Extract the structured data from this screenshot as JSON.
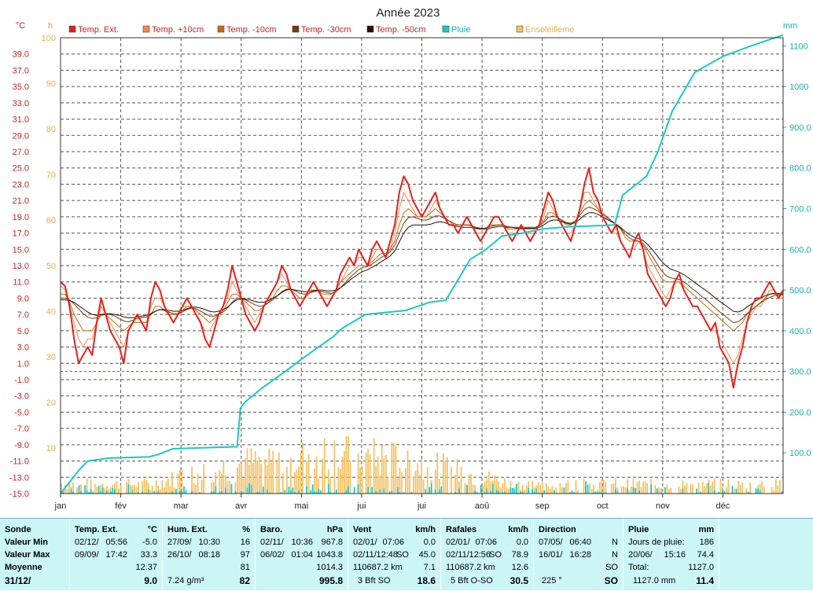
{
  "chart_data": {
    "type": "line",
    "title": "Année 2023",
    "y_left_unit": "°C",
    "y_hours_unit": "h",
    "y_right_unit": "mm",
    "ylim_temp": [
      -15,
      41
    ],
    "temp_ticks": [
      39.0,
      37.0,
      35.0,
      33.0,
      31.0,
      29.0,
      27.0,
      25.0,
      23.0,
      21.0,
      19.0,
      17.0,
      15.0,
      13.0,
      11.0,
      9.0,
      7.0,
      5.0,
      3.0,
      1.0,
      -1.0,
      -3.0,
      -5.0,
      -7.0,
      -9.0,
      -11.0,
      -13.0,
      -15.0
    ],
    "ylim_hours": [
      0,
      100
    ],
    "hours_ticks": [
      100,
      90,
      80,
      70,
      60,
      50,
      40,
      30,
      20,
      10
    ],
    "ylim_rain": [
      0,
      1120
    ],
    "rain_ticks": [
      1100,
      1000,
      900,
      800,
      700,
      600,
      500,
      400,
      300,
      200,
      100
    ],
    "months": [
      "jan",
      "fév",
      "mar",
      "avr",
      "mai",
      "jui",
      "jui",
      "aoû",
      "sep",
      "oct",
      "nov",
      "déc"
    ],
    "zero_line": 0,
    "grid": true,
    "legend": [
      {
        "name": "Temp. Ext.",
        "color": "#e8201a"
      },
      {
        "name": "Temp. +10cm",
        "color": "#f08a50"
      },
      {
        "name": "Temp. -10cm",
        "color": "#c86a10"
      },
      {
        "name": "Temp. -30cm",
        "color": "#7a3a10"
      },
      {
        "name": "Temp. -50cm",
        "color": "#2a0e06"
      },
      {
        "name": "Pluie",
        "color": "#18c8cc"
      },
      {
        "name": "Ensoleilleme",
        "color": "#f5c060"
      }
    ],
    "temp_ext": [
      11,
      10.5,
      8,
      4,
      1,
      2,
      3,
      2,
      6,
      9,
      7,
      5,
      4,
      3,
      1,
      5,
      6,
      7,
      6,
      5,
      9,
      11,
      10,
      8,
      7,
      6,
      7,
      8,
      9,
      8,
      7,
      6,
      4,
      3,
      5,
      7,
      8,
      10,
      13,
      11,
      9,
      7,
      6,
      5,
      6,
      8,
      9,
      10,
      11,
      13,
      12,
      10,
      9,
      8,
      9,
      10,
      11,
      10,
      9,
      8,
      9,
      10,
      12,
      13,
      14,
      13,
      15,
      14,
      13,
      15,
      16,
      15,
      14,
      16,
      18,
      22,
      24,
      23,
      21,
      20,
      19,
      20,
      21,
      22,
      20,
      19,
      18,
      18,
      17,
      18,
      19,
      18,
      17,
      16,
      17,
      18,
      19,
      19,
      18,
      17,
      16,
      17,
      18,
      17,
      16,
      17,
      18,
      20,
      22,
      21,
      19,
      18,
      17,
      16,
      18,
      20,
      23,
      25,
      22,
      21,
      19,
      18,
      17,
      18,
      16,
      15,
      14,
      16,
      17,
      15,
      12,
      11,
      10,
      9,
      8,
      9,
      11,
      12,
      10,
      9,
      8,
      8,
      7,
      6,
      5,
      6,
      3,
      2,
      1,
      -2,
      1,
      3,
      6,
      8,
      9,
      9,
      10,
      11,
      10,
      9,
      10
    ],
    "temp_10cm": [
      10.5,
      10,
      8,
      6,
      4,
      3,
      4,
      4,
      6,
      8,
      7,
      6,
      5,
      4,
      3,
      5,
      6,
      6,
      6,
      6,
      8,
      9,
      9,
      8,
      7,
      7,
      7,
      8,
      8,
      8,
      7,
      6,
      5,
      5,
      6,
      7,
      8,
      9,
      11,
      10,
      9,
      8,
      7,
      6,
      7,
      8,
      9,
      10,
      11,
      12,
      11,
      10,
      9,
      8,
      9,
      10,
      10,
      10,
      9,
      9,
      9,
      10,
      11,
      12,
      13,
      13,
      14,
      14,
      13,
      14,
      15,
      15,
      14,
      15,
      17,
      20,
      22,
      21,
      20,
      19,
      19,
      19,
      20,
      21,
      20,
      19,
      18,
      18,
      17,
      18,
      18,
      18,
      17,
      17,
      17,
      18,
      18,
      18,
      18,
      17,
      17,
      17,
      18,
      17,
      17,
      17,
      18,
      19,
      21,
      20,
      19,
      18,
      17,
      17,
      18,
      20,
      22,
      22,
      21,
      20,
      19,
      18,
      17,
      17,
      16,
      15,
      15,
      15,
      16,
      15,
      13,
      12,
      11,
      10,
      9,
      10,
      11,
      11,
      10,
      9,
      8,
      8,
      7,
      6,
      5,
      5,
      4,
      3,
      2,
      1,
      2,
      4,
      6,
      7,
      8,
      8,
      9,
      10,
      10,
      9,
      9
    ],
    "temp_m10": [
      9.5,
      9.5,
      8.5,
      7,
      6,
      5,
      5,
      5,
      6,
      7,
      7,
      6.5,
      6,
      5.5,
      5,
      5.5,
      6,
      6,
      6,
      6,
      7,
      8,
      8,
      7.5,
      7,
      7,
      7,
      7.5,
      8,
      8,
      7.5,
      7,
      6.5,
      6,
      6.5,
      7,
      7.5,
      8.5,
      9.5,
      9.5,
      9,
      8.5,
      8,
      7.5,
      7.5,
      8,
      8.5,
      9,
      10,
      10.5,
      10.5,
      10,
      9.5,
      9,
      9,
      9.5,
      10,
      10,
      9.5,
      9.5,
      9.5,
      10,
      11,
      11.5,
      12,
      12.5,
      13,
      13,
      13,
      13.5,
      14,
      14.5,
      14.5,
      15,
      16,
      18,
      19.5,
      20,
      19.5,
      19,
      19,
      19,
      19.5,
      20,
      19.5,
      19,
      18.5,
      18,
      18,
      18,
      18,
      18,
      17.5,
      17.5,
      17.5,
      18,
      18,
      18,
      18,
      17.5,
      17.5,
      17.5,
      17.5,
      17.5,
      17.5,
      17.5,
      18,
      18.5,
      19.5,
      19.5,
      19,
      18.5,
      18,
      18,
      18.5,
      19.5,
      20.5,
      21,
      20.5,
      20,
      19.5,
      19,
      18.5,
      18,
      17.5,
      16.5,
      16,
      16,
      16,
      15.5,
      14.5,
      13.5,
      12.5,
      11.5,
      11,
      11,
      11,
      11,
      10.5,
      10,
      9.5,
      9,
      8.5,
      8,
      7.5,
      7,
      6.5,
      6,
      5.5,
      5,
      5.5,
      6,
      7,
      7.5,
      8,
      8.5,
      9,
      9.5,
      9.5,
      9.5,
      9.5
    ],
    "temp_m30": [
      9,
      9,
      8.8,
      8.3,
      7.7,
      7.1,
      6.7,
      6.5,
      6.6,
      6.9,
      7,
      7,
      6.8,
      6.5,
      6.2,
      6.1,
      6.3,
      6.5,
      6.6,
      6.7,
      7,
      7.4,
      7.6,
      7.5,
      7.3,
      7.1,
      7.1,
      7.3,
      7.6,
      7.8,
      7.7,
      7.4,
      7.1,
      6.8,
      6.8,
      7,
      7.3,
      7.8,
      8.5,
      9,
      9,
      8.8,
      8.5,
      8.2,
      8,
      8.1,
      8.4,
      8.8,
      9.3,
      9.8,
      10.1,
      10.1,
      9.9,
      9.6,
      9.5,
      9.6,
      9.8,
      9.9,
      9.8,
      9.7,
      9.6,
      9.8,
      10.3,
      10.9,
      11.5,
      12,
      12.5,
      12.8,
      12.9,
      13.2,
      13.6,
      14,
      14.3,
      14.7,
      15.5,
      16.9,
      18.2,
      18.9,
      19,
      18.8,
      18.6,
      18.6,
      18.8,
      19.1,
      19.1,
      18.8,
      18.5,
      18.2,
      18,
      18,
      18,
      17.9,
      17.7,
      17.6,
      17.6,
      17.8,
      17.9,
      18,
      18,
      17.8,
      17.7,
      17.7,
      17.7,
      17.7,
      17.7,
      17.7,
      17.9,
      18.3,
      18.9,
      19.1,
      18.9,
      18.6,
      18.3,
      18.2,
      18.5,
      19.2,
      19.9,
      20.2,
      20,
      19.7,
      19.3,
      18.9,
      18.5,
      18.1,
      17.6,
      16.9,
      16.4,
      16.1,
      16,
      15.7,
      15,
      14.2,
      13.3,
      12.4,
      11.8,
      11.5,
      11.4,
      11.3,
      11,
      10.6,
      10.1,
      9.7,
      9.2,
      8.8,
      8.3,
      7.8,
      7.3,
      6.9,
      6.4,
      6,
      6.1,
      6.5,
      7.1,
      7.6,
      8,
      8.4,
      8.8,
      9.1,
      9.3,
      9.4,
      9.4
    ],
    "temp_m50": [
      8.8,
      8.8,
      8.7,
      8.5,
      8.1,
      7.7,
      7.3,
      7,
      6.9,
      7,
      7.1,
      7.1,
      7,
      6.9,
      6.7,
      6.6,
      6.6,
      6.7,
      6.8,
      6.9,
      7.1,
      7.4,
      7.6,
      7.6,
      7.5,
      7.4,
      7.4,
      7.5,
      7.7,
      7.9,
      7.9,
      7.8,
      7.6,
      7.4,
      7.3,
      7.4,
      7.6,
      7.9,
      8.4,
      8.8,
      8.9,
      8.9,
      8.8,
      8.6,
      8.5,
      8.5,
      8.7,
      9,
      9.3,
      9.7,
      10,
      10.1,
      10,
      9.9,
      9.8,
      9.8,
      9.9,
      10,
      10,
      9.9,
      9.9,
      10,
      10.3,
      10.7,
      11.2,
      11.6,
      12,
      12.3,
      12.5,
      12.8,
      13.1,
      13.5,
      13.8,
      14.2,
      14.8,
      15.9,
      17,
      17.7,
      18,
      18,
      18,
      18,
      18.1,
      18.3,
      18.4,
      18.3,
      18.1,
      17.9,
      17.8,
      17.7,
      17.7,
      17.7,
      17.6,
      17.5,
      17.5,
      17.6,
      17.7,
      17.8,
      17.8,
      17.7,
      17.7,
      17.6,
      17.6,
      17.6,
      17.6,
      17.6,
      17.7,
      18,
      18.4,
      18.6,
      18.6,
      18.4,
      18.2,
      18.1,
      18.3,
      18.7,
      19.2,
      19.5,
      19.5,
      19.3,
      19,
      18.7,
      18.4,
      18.1,
      17.7,
      17.2,
      16.8,
      16.5,
      16.3,
      16.1,
      15.6,
      15,
      14.3,
      13.6,
      13,
      12.6,
      12.4,
      12.2,
      11.9,
      11.5,
      11.1,
      10.7,
      10.3,
      9.9,
      9.5,
      9,
      8.6,
      8.2,
      7.8,
      7.4,
      7.3,
      7.5,
      7.9,
      8.3,
      8.7,
      9,
      9.3,
      9.5,
      9.6,
      9.6,
      9.6
    ],
    "rain_cum": [
      [
        0,
        0
      ],
      [
        12,
        60
      ],
      [
        17,
        80
      ],
      [
        30,
        87
      ],
      [
        55,
        90
      ],
      [
        60,
        95
      ],
      [
        70,
        110
      ],
      [
        85,
        112
      ],
      [
        110,
        115
      ],
      [
        112,
        210
      ],
      [
        115,
        225
      ],
      [
        125,
        258
      ],
      [
        140,
        300
      ],
      [
        150,
        330
      ],
      [
        170,
        386
      ],
      [
        175,
        405
      ],
      [
        190,
        440
      ],
      [
        215,
        450
      ],
      [
        230,
        470
      ],
      [
        240,
        475
      ],
      [
        255,
        575
      ],
      [
        265,
        600
      ],
      [
        275,
        633
      ],
      [
        285,
        638
      ],
      [
        300,
        650
      ],
      [
        315,
        655
      ],
      [
        345,
        660
      ],
      [
        350,
        733
      ],
      [
        365,
        780
      ],
      [
        372,
        840
      ],
      [
        381,
        940
      ],
      [
        395,
        1035
      ],
      [
        413,
        1075
      ],
      [
        430,
        1100
      ],
      [
        450,
        1127
      ]
    ],
    "summary": {
      "sonde": {
        "header": "Sonde",
        "rows": [
          "Valeur Min",
          "Valeur Max",
          "Moyenne"
        ],
        "date": "31/12/"
      },
      "temp": {
        "header": "Temp. Ext.",
        "unit": "°C",
        "min_date": "02/12/",
        "min_time": "05:56",
        "min": "-5.0",
        "max_date": "09/09/",
        "max_time": "17:42",
        "max": "33.3",
        "avg": "12.37",
        "current": "9.0"
      },
      "hum": {
        "header": "Hum. Ext.",
        "unit": "%",
        "min_date": "27/09/",
        "min_time": "10:30",
        "min": "16",
        "max_date": "26/10/",
        "max_time": "08:18",
        "max": "97",
        "avg": "81",
        "extra": "7.24 g/m³",
        "current": "82"
      },
      "baro": {
        "header": "Baro.",
        "unit": "hPa",
        "min_date": "02/11/",
        "min_time": "10:36",
        "min": "967.8",
        "max_date": "06/02/",
        "max_time": "01:04",
        "max": "1043.8",
        "avg": "1014.3",
        "current": "995.8"
      },
      "vent": {
        "header": "Vent",
        "unit": "km/h",
        "min_date": "02/01/",
        "min_time": "07:06",
        "min": "0.0",
        "max_date": "02/11/",
        "max_time": "12:48",
        "max_dir": "SO",
        "max": "45.0",
        "dist": "110687.2 km",
        "avg": "7.1",
        "bft": "3 Bft SO",
        "current": "18.6"
      },
      "rafales": {
        "header": "Rafales",
        "unit": "km/h",
        "min_date": "02/01/",
        "min_time": "07:06",
        "min": "0.0",
        "max_date": "02/11/",
        "max_time": "12:56",
        "max_dir": "SO",
        "max": "78.9",
        "dist": "110687.2 km",
        "avg": "12.6",
        "bft": "5 Bft O-SO",
        "current": "30.5"
      },
      "direction": {
        "header": "Direction",
        "min_date": "07/05/",
        "min_time": "06:40",
        "min": "N",
        "max_date": "16/01/",
        "max_time": "16:28",
        "max": "N",
        "avg": "SO",
        "deg": "225 °",
        "current": "SO"
      },
      "pluie": {
        "header": "Pluie",
        "unit": "mm",
        "jours_label": "Jours de pluie:",
        "jours": "186",
        "max_date": "20/06/",
        "max_time": "15:16",
        "max": "74.4",
        "total_label": "Total:",
        "total": "1127.0",
        "total_mm": "1127.0 mm",
        "current": "11.4"
      }
    }
  }
}
